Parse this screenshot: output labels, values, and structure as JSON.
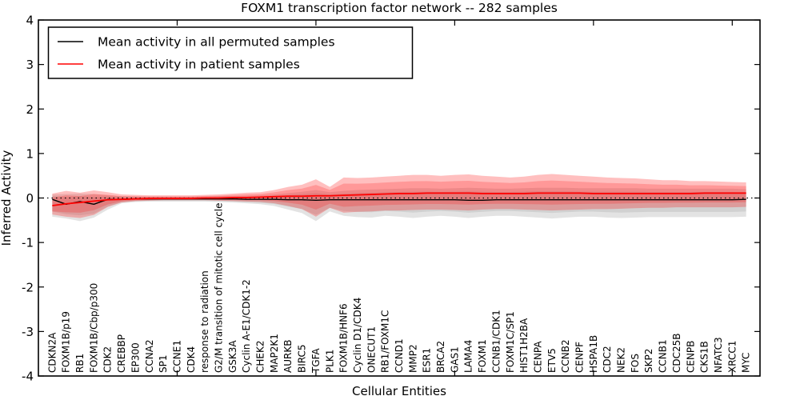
{
  "title": "FOXM1 transcription factor network -- 282 samples",
  "legend": {
    "items": [
      {
        "label": "Mean activity in all permuted samples",
        "color": "#000000"
      },
      {
        "label": "Mean activity in patient samples",
        "color": "#ff0000"
      }
    ]
  },
  "axes": {
    "x_label": "Cellular Entities",
    "y_label": "Inferred Activity",
    "y_tick_labels": [
      "4",
      "3",
      "2",
      "1",
      "0",
      "-1",
      "-2",
      "-3",
      "-4"
    ]
  },
  "chart_data": {
    "type": "line",
    "title": "FOXM1 transcription factor network -- 282 samples",
    "xlabel": "Cellular Entities",
    "ylabel": "Inferred Activity",
    "ylim": [
      -4,
      4
    ],
    "y_ticks": [
      4,
      3,
      2,
      1,
      0,
      -1,
      -2,
      -3,
      -4
    ],
    "x_axis_units": 52,
    "x_major_tick_units": [
      10,
      20,
      30,
      40,
      50
    ],
    "zero_line": 0,
    "grid": false,
    "legend_position": "upper left",
    "categories": [
      "CDKN2A",
      "FOXM1B/p19",
      "RB1",
      "FOXM1B/Cbp/p300",
      "CDK2",
      "CREBBP",
      "EP300",
      "CCNA2",
      "SP1",
      "CCNE1",
      "CDK4",
      "response to radiation",
      "G2/M transition of mitotic cell cycle",
      "GSK3A",
      "Cyclin A-E1/CDK1-2",
      "CHEK2",
      "MAP2K1",
      "AURKB",
      "BIRC5",
      "TGFA",
      "PLK1",
      "FOXM1B/HNF6",
      "Cyclin D1/CDK4",
      "ONECUT1",
      "RB1/FOXM1C",
      "CCND1",
      "MMP2",
      "ESR1",
      "BRCA2",
      "GAS1",
      "LAMA4",
      "FOXM1",
      "CCNB1/CDK1",
      "FOXM1C/SP1",
      "HIST1H2BA",
      "CENPA",
      "ETV5",
      "CCNB2",
      "CENPF",
      "HSPA1B",
      "CDC2",
      "NEK2",
      "FOS",
      "SKP2",
      "CCNB1",
      "CDC25B",
      "CENPB",
      "CKS1B",
      "NFATC3",
      "XRCC1",
      "MYC"
    ],
    "series": [
      {
        "name": "Mean activity in all permuted samples",
        "color": "#000000",
        "line_width": 1.4,
        "band_color": "#7f7f7f",
        "band_opacity": 0.22,
        "inner_band_scale": 0.7,
        "values": [
          -0.03,
          -0.14,
          -0.08,
          -0.14,
          -0.03,
          -0.03,
          -0.02,
          -0.02,
          -0.02,
          -0.02,
          -0.02,
          -0.02,
          -0.02,
          -0.02,
          -0.03,
          -0.03,
          -0.03,
          -0.04,
          -0.04,
          -0.05,
          -0.04,
          -0.04,
          -0.04,
          -0.04,
          -0.04,
          -0.04,
          -0.04,
          -0.04,
          -0.04,
          -0.04,
          -0.05,
          -0.05,
          -0.04,
          -0.04,
          -0.04,
          -0.04,
          -0.04,
          -0.04,
          -0.04,
          -0.04,
          -0.04,
          -0.04,
          -0.04,
          -0.04,
          -0.04,
          -0.04,
          -0.04,
          -0.04,
          -0.04,
          -0.04,
          -0.03
        ],
        "band_lo": [
          -0.42,
          -0.46,
          -0.52,
          -0.44,
          -0.26,
          -0.12,
          -0.09,
          -0.08,
          -0.08,
          -0.08,
          -0.08,
          -0.08,
          -0.09,
          -0.1,
          -0.12,
          -0.14,
          -0.18,
          -0.26,
          -0.34,
          -0.52,
          -0.3,
          -0.4,
          -0.43,
          -0.44,
          -0.4,
          -0.42,
          -0.45,
          -0.42,
          -0.4,
          -0.42,
          -0.45,
          -0.42,
          -0.4,
          -0.4,
          -0.42,
          -0.44,
          -0.46,
          -0.44,
          -0.42,
          -0.42,
          -0.44,
          -0.45,
          -0.44,
          -0.43,
          -0.43,
          -0.43,
          -0.43,
          -0.43,
          -0.43,
          -0.43,
          -0.42
        ],
        "band_hi": [
          0.08,
          0.09,
          0.1,
          0.09,
          0.06,
          0.04,
          0.03,
          0.03,
          0.03,
          0.03,
          0.03,
          0.03,
          0.04,
          0.04,
          0.05,
          0.06,
          0.08,
          0.11,
          0.14,
          0.18,
          0.13,
          0.16,
          0.18,
          0.19,
          0.2,
          0.21,
          0.22,
          0.22,
          0.21,
          0.22,
          0.23,
          0.22,
          0.21,
          0.21,
          0.22,
          0.23,
          0.23,
          0.23,
          0.22,
          0.22,
          0.22,
          0.22,
          0.22,
          0.21,
          0.21,
          0.21,
          0.21,
          0.21,
          0.21,
          0.21,
          0.2
        ]
      },
      {
        "name": "Mean activity in patient samples",
        "color": "#ff0000",
        "line_width": 1.8,
        "band_color": "#ff0000",
        "band_opacity": 0.25,
        "inner_band_scale": 0.66,
        "values": [
          -0.17,
          -0.13,
          -0.1,
          -0.07,
          -0.04,
          -0.03,
          -0.02,
          -0.01,
          -0.01,
          -0.01,
          -0.01,
          0.0,
          0.0,
          0.01,
          0.01,
          0.02,
          0.03,
          0.04,
          0.04,
          0.05,
          0.05,
          0.06,
          0.07,
          0.08,
          0.09,
          0.1,
          0.1,
          0.11,
          0.11,
          0.11,
          0.11,
          0.1,
          0.1,
          0.1,
          0.1,
          0.11,
          0.11,
          0.11,
          0.11,
          0.1,
          0.1,
          0.1,
          0.1,
          0.1,
          0.1,
          0.1,
          0.1,
          0.11,
          0.11,
          0.11,
          0.11
        ],
        "band_lo": [
          -0.37,
          -0.42,
          -0.45,
          -0.38,
          -0.2,
          -0.1,
          -0.07,
          -0.06,
          -0.05,
          -0.05,
          -0.05,
          -0.05,
          -0.06,
          -0.07,
          -0.08,
          -0.09,
          -0.12,
          -0.18,
          -0.25,
          -0.42,
          -0.22,
          -0.33,
          -0.31,
          -0.3,
          -0.28,
          -0.28,
          -0.27,
          -0.26,
          -0.26,
          -0.27,
          -0.28,
          -0.26,
          -0.25,
          -0.25,
          -0.26,
          -0.27,
          -0.28,
          -0.27,
          -0.26,
          -0.25,
          -0.25,
          -0.24,
          -0.23,
          -0.22,
          -0.22,
          -0.21,
          -0.21,
          -0.21,
          -0.21,
          -0.21,
          -0.2
        ],
        "band_hi": [
          0.1,
          0.16,
          0.12,
          0.17,
          0.13,
          0.08,
          0.07,
          0.06,
          0.06,
          0.06,
          0.06,
          0.07,
          0.08,
          0.1,
          0.12,
          0.13,
          0.18,
          0.25,
          0.3,
          0.42,
          0.25,
          0.46,
          0.45,
          0.46,
          0.48,
          0.5,
          0.52,
          0.52,
          0.5,
          0.52,
          0.53,
          0.5,
          0.48,
          0.46,
          0.48,
          0.52,
          0.54,
          0.52,
          0.5,
          0.48,
          0.46,
          0.45,
          0.44,
          0.42,
          0.4,
          0.4,
          0.38,
          0.38,
          0.37,
          0.36,
          0.35
        ]
      }
    ]
  }
}
